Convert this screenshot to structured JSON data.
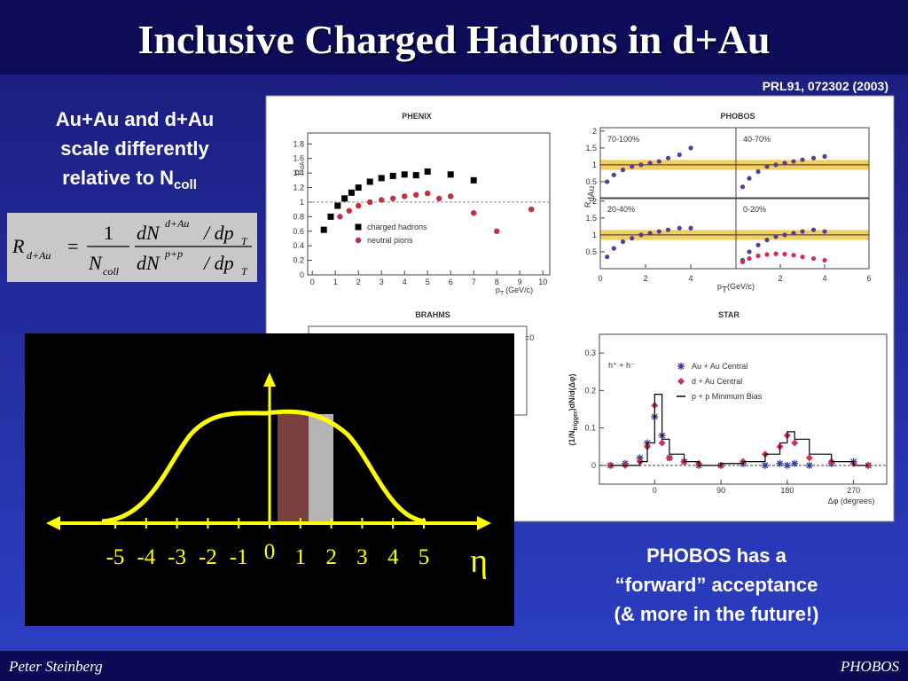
{
  "header": {
    "title": "Inclusive Charged Hadrons in d+Au",
    "reference": "PRL91, 072302 (2003)"
  },
  "left_note": {
    "lines": [
      "Au+Au and d+Au",
      "scale differently",
      "relative to N"
    ],
    "subscript": "coll"
  },
  "formula": {
    "lhs": "R",
    "lhs_sub": "d+Au",
    "equals": "=",
    "factor_num": "1",
    "factor_den": "N",
    "factor_den_sub": "coll",
    "num": "dN",
    "num_sup": "d+Au",
    "num_rest": "/ dp",
    "num_rest_sub": "T",
    "den": "dN",
    "den_sup": "p+p",
    "den_rest": "/ dp",
    "den_rest_sub": "T"
  },
  "figure": {
    "phenix": {
      "type": "scatter",
      "title": "PHENIX",
      "ylabel": "R",
      "ylabel_sub": "dA",
      "xlabel": "p",
      "xlabel_sub": "T",
      "xlabel_unit": "(GeV/c)",
      "xlim": [
        -0.2,
        10.3
      ],
      "ylim": [
        0,
        1.95
      ],
      "xticks": [
        0,
        1,
        2,
        3,
        4,
        5,
        6,
        7,
        8,
        9,
        10
      ],
      "yticks": [
        0,
        0.2,
        0.4,
        0.6,
        0.8,
        1,
        1.2,
        1.4,
        1.6,
        1.8
      ],
      "series": [
        {
          "name": "charged hadrons",
          "color": "#000000",
          "marker": "square",
          "x": [
            0.5,
            0.8,
            1.1,
            1.4,
            1.7,
            2,
            2.5,
            3,
            3.5,
            4,
            4.5,
            5,
            6,
            7
          ],
          "values": [
            0.62,
            0.8,
            0.95,
            1.05,
            1.13,
            1.2,
            1.28,
            1.33,
            1.36,
            1.38,
            1.37,
            1.42,
            1.38,
            1.3
          ]
        },
        {
          "name": "neutral pions",
          "color": "#c03040",
          "marker": "circle",
          "x": [
            1.2,
            1.6,
            2,
            2.5,
            3,
            3.5,
            4,
            4.5,
            5,
            5.5,
            6,
            7,
            8,
            9.5
          ],
          "values": [
            0.8,
            0.88,
            0.95,
            1,
            1.03,
            1.05,
            1.08,
            1.1,
            1.12,
            1.05,
            1.08,
            0.85,
            0.6,
            0.9
          ]
        }
      ]
    },
    "phobos": {
      "type": "scatter",
      "title": "PHOBOS",
      "ylabel": "R",
      "ylabel_sub": "dAu",
      "xlabel": "p",
      "xlabel_sub": "T",
      "xlabel_unit": "(GeV/c)",
      "xlim": [
        0,
        6
      ],
      "ylim": [
        0,
        2.1
      ],
      "x": [
        0.3,
        0.6,
        1,
        1.4,
        1.8,
        2.2,
        2.6,
        3,
        3.5,
        4
      ],
      "panels": [
        {
          "label": "70-100%",
          "yticks": [
            0.5,
            1,
            1.5,
            2
          ],
          "series": [
            {
              "color": "#5a3a9a",
              "values": [
                0.5,
                0.7,
                0.85,
                0.95,
                1,
                1.05,
                1.1,
                1.2,
                1.3,
                1.5
              ]
            }
          ]
        },
        {
          "label": "40-70%",
          "series": [
            {
              "color": "#5a3a9a",
              "values": [
                0.35,
                0.6,
                0.8,
                0.95,
                1,
                1.05,
                1.1,
                1.15,
                1.2,
                1.25
              ]
            }
          ]
        },
        {
          "label": "20-40%",
          "yticks": [
            0.5,
            1,
            1.5,
            2
          ],
          "xticks": [
            0,
            2,
            4
          ],
          "series": [
            {
              "color": "#5a3a9a",
              "values": [
                0.35,
                0.6,
                0.8,
                0.9,
                1,
                1.05,
                1.1,
                1.15,
                1.2,
                1.2
              ]
            }
          ]
        },
        {
          "label": "0-20%",
          "xticks": [
            2,
            4,
            6
          ],
          "series": [
            {
              "color": "#5a3a9a",
              "values": [
                0.25,
                0.5,
                0.7,
                0.85,
                0.95,
                1,
                1.05,
                1.1,
                1.15,
                1.1
              ]
            },
            {
              "color": "#d03050",
              "values": [
                0.2,
                0.3,
                0.38,
                0.42,
                0.44,
                0.43,
                0.4,
                0.35,
                0.3,
                0.25
              ]
            }
          ]
        }
      ]
    },
    "brahms": {
      "title": "BRAHMS",
      "fragment": "=0"
    },
    "star": {
      "type": "line",
      "title": "STAR",
      "ylabel": "(1/N",
      "ylabel_sub": "trigger",
      "ylabel_rest": ")dN/d(Δφ)",
      "xlabel": "Δφ (degrees)",
      "particles": "h⁺ + h⁻",
      "xlim": [
        -75,
        315
      ],
      "ylim": [
        -0.05,
        0.35
      ],
      "xticks": [
        0,
        90,
        180,
        270
      ],
      "yticks": [
        0,
        0.1,
        0.2,
        0.3
      ],
      "x": [
        -60,
        -40,
        -20,
        -10,
        0,
        10,
        20,
        40,
        60,
        90,
        120,
        150,
        170,
        180,
        190,
        210,
        240,
        270,
        290
      ],
      "series": [
        {
          "name": "Au + Au  Central",
          "color": "#3a3a9a",
          "marker": "star",
          "values": [
            0,
            0.005,
            0.02,
            0.06,
            0.13,
            0.08,
            0.02,
            0.01,
            0,
            0,
            0.005,
            0,
            0.005,
            0,
            0.005,
            0,
            0.005,
            0.01,
            0
          ]
        },
        {
          "name": "d + Au  Central",
          "color": "#d03050",
          "marker": "diamond",
          "values": [
            0,
            0,
            0.01,
            0.05,
            0.16,
            0.06,
            0.02,
            0.01,
            0.005,
            0,
            0.01,
            0.03,
            0.05,
            0.08,
            0.06,
            0.02,
            0.01,
            0.005,
            0
          ]
        },
        {
          "name": "p + p  Minimum Bias",
          "color": "#000000",
          "marker": "step",
          "values": [
            0,
            0,
            0.01,
            0.06,
            0.19,
            0.07,
            0.03,
            0.01,
            0,
            0.005,
            0.01,
            0.03,
            0.06,
            0.09,
            0.07,
            0.03,
            0.01,
            0,
            0
          ]
        }
      ]
    }
  },
  "eta_diagram": {
    "ticks": [
      -5,
      -4,
      -3,
      -2,
      -1,
      0,
      1,
      2,
      3,
      4,
      5
    ],
    "axis_label": "η"
  },
  "right_note": {
    "lines": [
      "PHOBOS has a",
      "“forward” acceptance",
      "(& more in the future!)"
    ]
  },
  "footer": {
    "author": "Peter Steinberg",
    "experiment": "PHOBOS"
  }
}
